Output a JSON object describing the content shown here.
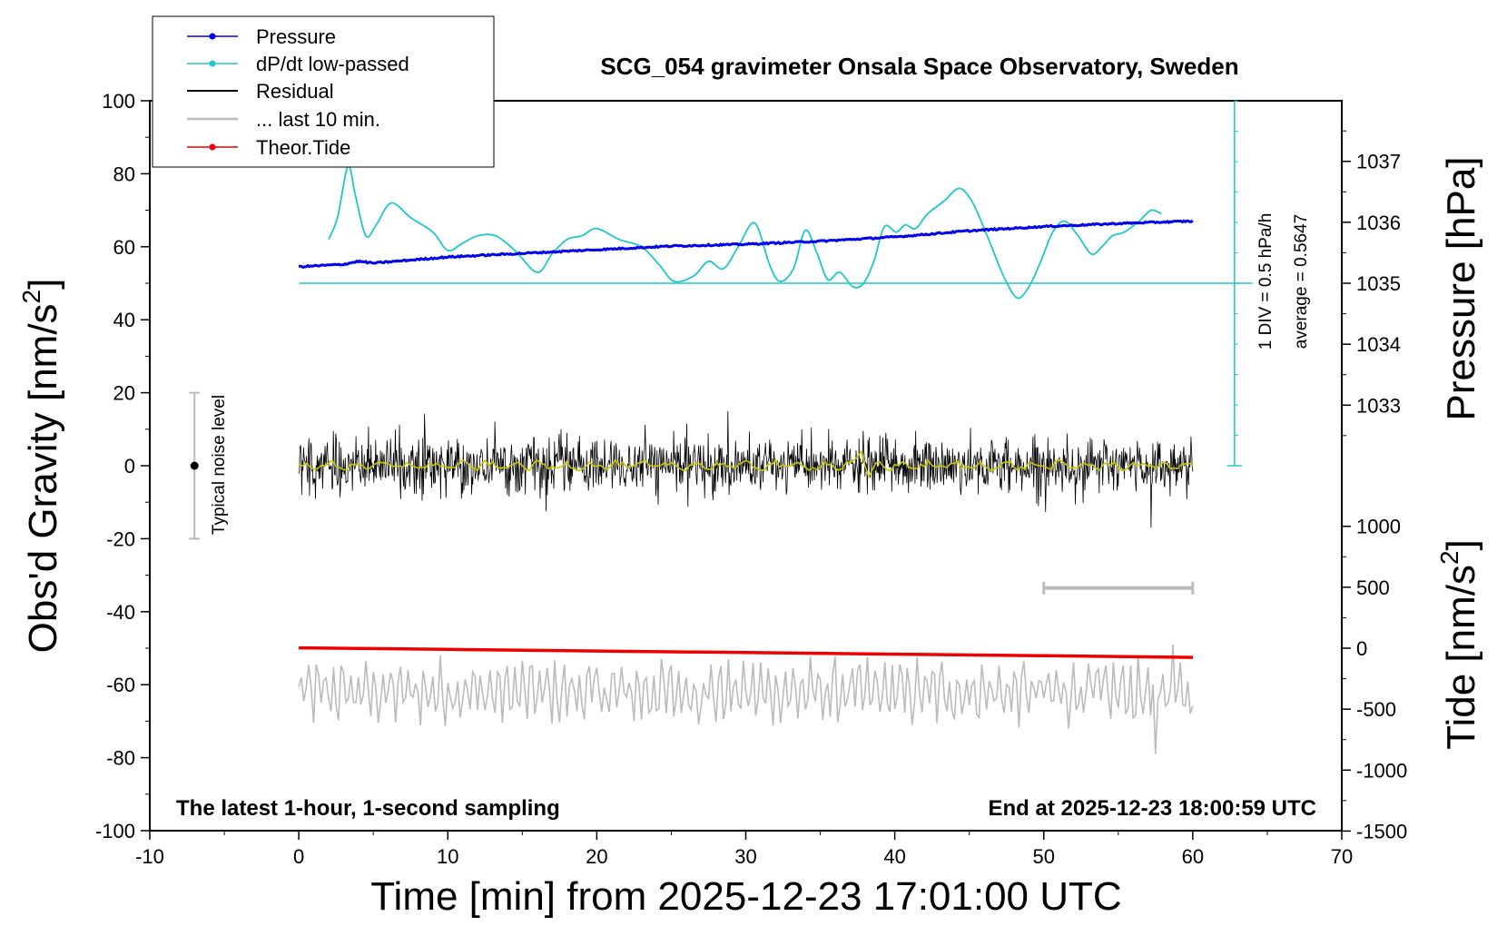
{
  "chart_data": {
    "type": "line",
    "title": "SCG_054 gravimeter Onsala Space Observatory, Sweden",
    "xlabel": "Time [min] from 2025-12-23 17:01:00 UTC",
    "ylabel_left": "Obs'd Gravity [nm/s",
    "ylabel_left_sup": "2",
    "ylabel_left_end": "]",
    "ylabel_right_top": "Pressure [hPa]",
    "ylabel_right_bottom": "Tide [nm/s",
    "ylabel_right_bottom_sup": "2",
    "ylabel_right_bottom_end": "]",
    "xlim": [
      -10,
      70
    ],
    "ylim": [
      -100,
      100
    ],
    "x_ticks": [
      "-10",
      "0",
      "10",
      "20",
      "30",
      "40",
      "50",
      "60",
      "70"
    ],
    "y_ticks": [
      "-100",
      "-80",
      "-60",
      "-40",
      "-20",
      "0",
      "20",
      "40",
      "60",
      "80",
      "100"
    ],
    "pressure_axis": {
      "ticks": [
        "1033",
        "1034",
        "1035",
        "1036",
        "1037"
      ]
    },
    "tide_axis": {
      "ticks": [
        "-1500",
        "-1000",
        "-500",
        "0",
        "500",
        "1000"
      ]
    },
    "legend": {
      "position": "top-left",
      "entries": [
        "Pressure",
        "dP/dt low-passed",
        "Residual",
        "... last 10 min.",
        "Theor.Tide"
      ]
    },
    "footnote_left": "The latest 1-hour, 1-second sampling",
    "footnote_right": "End at 2025-12-23 18:00:59 UTC",
    "noise_label": "Typical noise level",
    "noise_range": [
      -20,
      20
    ],
    "dpdt_scale_label": "1 DIV = 0.5 hPa/h",
    "dpdt_average_label": "average = 0.5647",
    "last10_bar": [
      50,
      60
    ],
    "colors": {
      "pressure": "#0000ee",
      "dpdt": "#1ec8c8",
      "residual": "#000000",
      "residual_smooth": "#c8c800",
      "last10": "#bbbbbb",
      "tide": "#ee0000"
    },
    "series": [
      {
        "name": "Pressure",
        "axis": "pressure",
        "x": [
          0,
          3,
          4,
          5,
          10,
          15,
          20,
          25,
          30,
          35,
          40,
          45,
          50,
          55,
          60
        ],
        "values": [
          1035.27,
          1035.31,
          1035.36,
          1035.33,
          1035.43,
          1035.49,
          1035.55,
          1035.61,
          1035.64,
          1035.69,
          1035.76,
          1035.86,
          1035.93,
          1035.98,
          1036.02
        ]
      },
      {
        "name": "dP/dt low-passed",
        "axis": "gravity-overlay",
        "x": [
          2,
          2.6,
          3.3,
          3.8,
          4.5,
          5.2,
          6.2,
          7.5,
          9,
          10,
          11,
          12,
          13.2,
          14.5,
          16,
          17,
          18,
          19,
          20,
          21.5,
          23,
          24.2,
          25.2,
          26.5,
          27.5,
          28.5,
          29.5,
          30.6,
          31.6,
          32.3,
          33.2,
          34,
          34.8,
          35.5,
          36.3,
          37.2,
          37.9,
          38.6,
          39.3,
          40.1,
          40.7,
          41.4,
          42.2,
          43.3,
          44.3,
          45.1,
          45.8,
          46.5,
          47.3,
          48.2,
          49,
          49.8,
          50.6,
          51.4,
          52.3,
          53.2,
          53.9,
          54.6,
          55.4,
          56.4,
          57.2,
          57.9
        ],
        "values": [
          62,
          68,
          82,
          74,
          63,
          66,
          72,
          68,
          64,
          59,
          61,
          63,
          63,
          59,
          53,
          58,
          62,
          63,
          65,
          62,
          60,
          55,
          50.5,
          52,
          56,
          54,
          60,
          66.5,
          55,
          50.5,
          54,
          64.5,
          58,
          51,
          53,
          49,
          50,
          56,
          65.5,
          64,
          66,
          65,
          69,
          72.5,
          76,
          73,
          67,
          60,
          52,
          46,
          49,
          56,
          64,
          67,
          63,
          58,
          60,
          63,
          64,
          67,
          70,
          69
        ]
      },
      {
        "name": "Residual",
        "axis": "gravity",
        "x_range": [
          0,
          60
        ],
        "baseline": 0,
        "typical_amplitude": 5,
        "extremes": [
          15,
          -17
        ]
      },
      {
        "name": "... last 10 min.",
        "axis": "gravity",
        "x_range": [
          0,
          60
        ],
        "baseline": -62,
        "extremes": [
          -49,
          -79
        ]
      },
      {
        "name": "Theor.Tide",
        "axis": "tide",
        "x": [
          0,
          10,
          20,
          30,
          40,
          50,
          60
        ],
        "values": [
          3,
          -10,
          -23,
          -36,
          -49,
          -62,
          -75
        ]
      }
    ]
  }
}
